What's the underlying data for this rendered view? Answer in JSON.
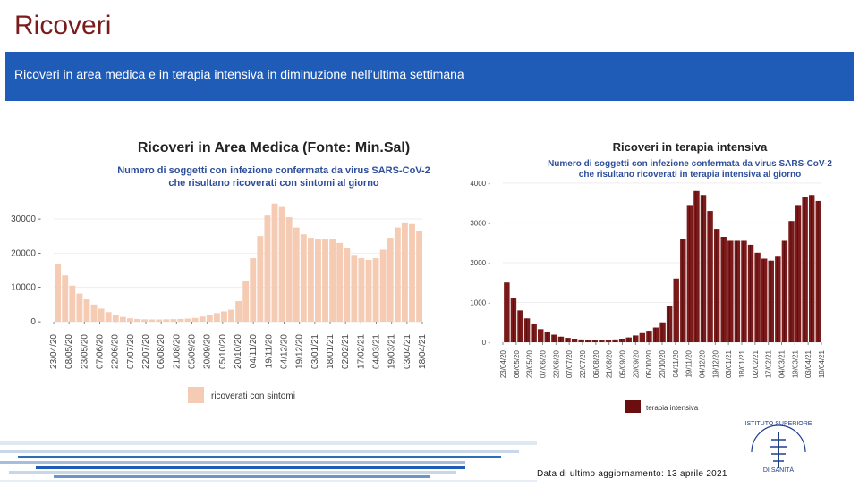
{
  "page": {
    "title": "Ricoveri",
    "banner": "Ricoveri in area medica e in terapia intensiva in diminuzione nell’ultima settimana",
    "footer_date": "Data di ultimo aggiornamento: 13 aprile 2021"
  },
  "colors": {
    "banner": "#1f5cb8",
    "title": "#7a1c1c",
    "medica": "#f6cbb3",
    "intensiva": "#7a1a1a"
  },
  "chart_data": [
    {
      "type": "bar",
      "title": "Ricoveri in Area Medica (Fonte: Min.Sal)",
      "subtitle_line1": "Numero di soggetti con infezione confermata da virus SARS-CoV-2",
      "subtitle_line2": "che risultano ricoverati con sintomi al giorno",
      "legend": "ricoverati con sintomi",
      "ylim": [
        0,
        36000
      ],
      "yticks": [
        0,
        10000,
        20000,
        30000
      ],
      "ytick_labels": [
        "0",
        "10000",
        "20000",
        "30000"
      ],
      "xtick_labels": [
        "23/04/20",
        "08/05/20",
        "23/05/20",
        "07/06/20",
        "22/06/20",
        "07/07/20",
        "22/07/20",
        "06/08/20",
        "21/08/20",
        "05/09/20",
        "20/09/20",
        "05/10/20",
        "20/10/20",
        "04/11/20",
        "19/11/20",
        "04/12/20",
        "19/12/20",
        "03/01/21",
        "18/01/21",
        "02/02/21",
        "17/02/21",
        "04/03/21",
        "19/03/21",
        "03/04/21",
        "18/04/21"
      ],
      "x_start": "2020-04-23",
      "interval_days": 7,
      "values": [
        16800,
        13500,
        10500,
        8200,
        6500,
        5000,
        3800,
        2800,
        2000,
        1400,
        1000,
        800,
        700,
        650,
        650,
        700,
        750,
        800,
        900,
        1100,
        1500,
        2000,
        2500,
        3000,
        3500,
        6000,
        12000,
        18500,
        25000,
        31000,
        34500,
        33500,
        30500,
        27500,
        25500,
        24500,
        24000,
        24200,
        24000,
        23000,
        21500,
        19500,
        18500,
        18000,
        18500,
        21000,
        24500,
        27500,
        29000,
        28500,
        26500
      ]
    },
    {
      "type": "bar",
      "title": "Ricoveri in terapia intensiva",
      "subtitle_line1": "Numero di soggetti con infezione confermata da virus SARS-CoV-2",
      "subtitle_line2": "che risultano ricoverati in terapia intensiva al giorno",
      "legend": "terapia intensiva",
      "ylim": [
        0,
        4200
      ],
      "yticks": [
        0,
        1000,
        2000,
        3000,
        4000
      ],
      "ytick_labels": [
        "0",
        "1000",
        "2000",
        "3000",
        "4000"
      ],
      "xtick_labels": [
        "23/04/20",
        "08/05/20",
        "23/05/20",
        "07/06/20",
        "22/06/20",
        "07/07/20",
        "22/07/20",
        "06/08/20",
        "21/08/20",
        "05/09/20",
        "20/09/20",
        "05/10/20",
        "20/10/20",
        "04/11/20",
        "19/11/20",
        "04/12/20",
        "19/12/20",
        "03/01/21",
        "18/01/21",
        "02/02/21",
        "17/02/21",
        "04/03/21",
        "19/03/21",
        "03/04/21",
        "18/04/21"
      ],
      "x_start": "2020-04-23",
      "interval_days": 7,
      "values": [
        1500,
        1100,
        800,
        600,
        450,
        330,
        250,
        190,
        140,
        110,
        90,
        70,
        60,
        55,
        55,
        60,
        70,
        90,
        120,
        170,
        230,
        290,
        370,
        500,
        900,
        1600,
        2600,
        3450,
        3800,
        3700,
        3300,
        2850,
        2650,
        2550,
        2550,
        2550,
        2450,
        2250,
        2100,
        2050,
        2150,
        2550,
        3050,
        3450,
        3650,
        3700,
        3550
      ]
    }
  ]
}
